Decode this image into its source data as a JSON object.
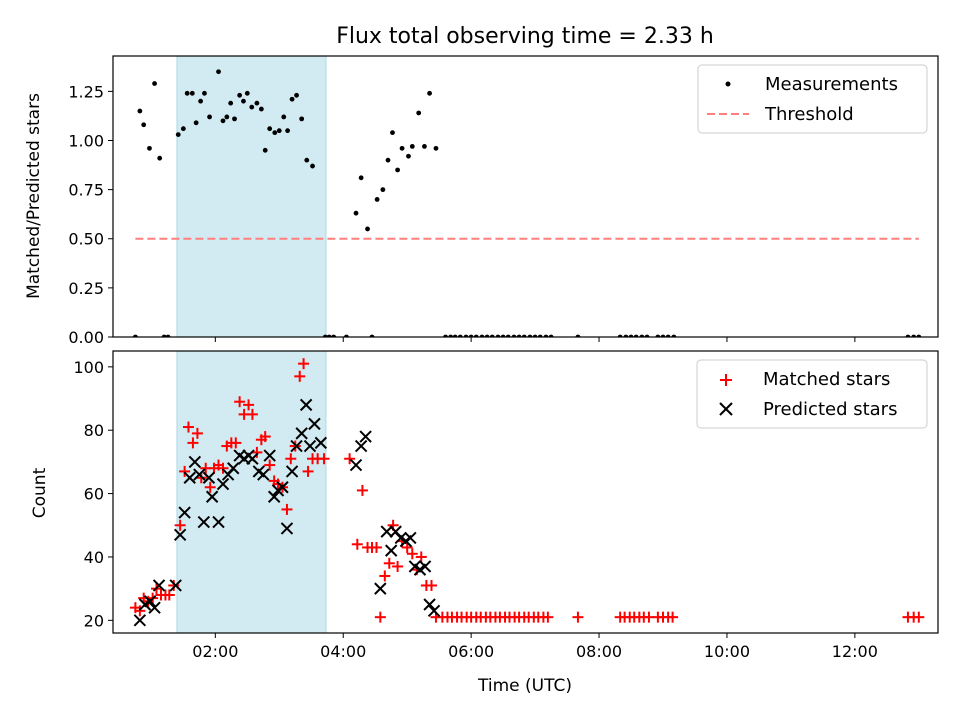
{
  "chart_data": [
    {
      "type": "scatter",
      "title": "Flux total observing time = 2.33 h",
      "xlabel": "",
      "ylabel": "Matched/Predicted stars",
      "xlim": [
        0.4,
        13.3
      ],
      "ylim": [
        0,
        1.43
      ],
      "yticks": [
        0.0,
        0.25,
        0.5,
        0.75,
        1.0,
        1.25
      ],
      "ytick_labels": [
        "0.00",
        "0.25",
        "0.50",
        "0.75",
        "1.00",
        "1.25"
      ],
      "xticks": [
        2,
        4,
        6,
        8,
        10,
        12
      ],
      "shaded_span": [
        1.4,
        3.73
      ],
      "shade_color": "#add8e6",
      "legend": {
        "placement": "top-right",
        "entries": [
          {
            "label": "Measurements",
            "marker": "dot",
            "color": "#000000"
          },
          {
            "label": "Threshold",
            "marker": "dashed-line",
            "color": "#ff7f7f"
          }
        ]
      },
      "threshold": {
        "name": "Threshold",
        "x": [
          0.75,
          13.0
        ],
        "y": 0.5,
        "color": "#ff7f7f"
      },
      "series": [
        {
          "name": "Measurements",
          "color": "#000000",
          "points": [
            [
              0.75,
              0.0
            ],
            [
              0.82,
              1.15
            ],
            [
              0.88,
              1.08
            ],
            [
              0.97,
              0.96
            ],
            [
              1.05,
              1.29
            ],
            [
              1.13,
              0.91
            ],
            [
              1.2,
              0.0
            ],
            [
              1.26,
              0.0
            ],
            [
              1.42,
              1.03
            ],
            [
              1.5,
              1.06
            ],
            [
              1.56,
              1.24
            ],
            [
              1.64,
              1.24
            ],
            [
              1.7,
              1.09
            ],
            [
              1.77,
              1.2
            ],
            [
              1.83,
              1.24
            ],
            [
              1.91,
              1.12
            ],
            [
              2.05,
              1.35
            ],
            [
              2.12,
              1.1
            ],
            [
              2.18,
              1.12
            ],
            [
              2.24,
              1.19
            ],
            [
              2.3,
              1.11
            ],
            [
              2.38,
              1.23
            ],
            [
              2.44,
              1.2
            ],
            [
              2.5,
              1.24
            ],
            [
              2.57,
              1.17
            ],
            [
              2.65,
              1.19
            ],
            [
              2.72,
              1.16
            ],
            [
              2.78,
              0.95
            ],
            [
              2.85,
              1.06
            ],
            [
              2.93,
              1.04
            ],
            [
              3.0,
              1.05
            ],
            [
              3.07,
              1.12
            ],
            [
              3.13,
              1.05
            ],
            [
              3.2,
              1.21
            ],
            [
              3.27,
              1.23
            ],
            [
              3.35,
              1.11
            ],
            [
              3.43,
              0.9
            ],
            [
              3.52,
              0.87
            ],
            [
              3.72,
              0.0
            ],
            [
              3.78,
              0.0
            ],
            [
              3.85,
              0.0
            ],
            [
              4.05,
              0.0
            ],
            [
              4.2,
              0.63
            ],
            [
              4.28,
              0.81
            ],
            [
              4.38,
              0.55
            ],
            [
              4.45,
              0.0
            ],
            [
              4.53,
              0.7
            ],
            [
              4.62,
              0.75
            ],
            [
              4.7,
              0.9
            ],
            [
              4.77,
              1.04
            ],
            [
              4.85,
              0.85
            ],
            [
              4.92,
              0.96
            ],
            [
              5.02,
              0.92
            ],
            [
              5.08,
              0.97
            ],
            [
              5.18,
              1.14
            ],
            [
              5.27,
              0.97
            ],
            [
              5.35,
              1.24
            ],
            [
              5.45,
              0.96
            ],
            [
              5.6,
              0.0
            ],
            [
              5.68,
              0.0
            ],
            [
              5.75,
              0.0
            ],
            [
              5.83,
              0.0
            ],
            [
              5.92,
              0.0
            ],
            [
              6.0,
              0.0
            ],
            [
              6.08,
              0.0
            ],
            [
              6.17,
              0.0
            ],
            [
              6.25,
              0.0
            ],
            [
              6.33,
              0.0
            ],
            [
              6.42,
              0.0
            ],
            [
              6.5,
              0.0
            ],
            [
              6.58,
              0.0
            ],
            [
              6.67,
              0.0
            ],
            [
              6.75,
              0.0
            ],
            [
              6.83,
              0.0
            ],
            [
              6.92,
              0.0
            ],
            [
              7.0,
              0.0
            ],
            [
              7.08,
              0.0
            ],
            [
              7.17,
              0.0
            ],
            [
              7.25,
              0.0
            ],
            [
              7.67,
              0.0
            ],
            [
              8.33,
              0.0
            ],
            [
              8.42,
              0.0
            ],
            [
              8.5,
              0.0
            ],
            [
              8.58,
              0.0
            ],
            [
              8.67,
              0.0
            ],
            [
              8.75,
              0.0
            ],
            [
              8.92,
              0.0
            ],
            [
              9.0,
              0.0
            ],
            [
              9.08,
              0.0
            ],
            [
              9.17,
              0.0
            ],
            [
              12.83,
              0.0
            ],
            [
              12.92,
              0.0
            ],
            [
              13.0,
              0.0
            ]
          ]
        }
      ]
    },
    {
      "type": "scatter",
      "title": "",
      "xlabel": "Time (UTC)",
      "ylabel": "Count",
      "xlim": [
        0.4,
        13.3
      ],
      "ylim": [
        16,
        105
      ],
      "yticks": [
        20,
        40,
        60,
        80,
        100
      ],
      "ytick_labels": [
        "20",
        "40",
        "60",
        "80",
        "100"
      ],
      "xticks": [
        2,
        4,
        6,
        8,
        10,
        12
      ],
      "xtick_labels": [
        "02:00",
        "04:00",
        "06:00",
        "08:00",
        "10:00",
        "12:00"
      ],
      "shaded_span": [
        1.4,
        3.73
      ],
      "shade_color": "#add8e6",
      "legend": {
        "placement": "top-right",
        "entries": [
          {
            "label": "Matched stars",
            "marker": "plus",
            "color": "#ff0000"
          },
          {
            "label": "Predicted stars",
            "marker": "x",
            "color": "#000000"
          }
        ]
      },
      "series": [
        {
          "name": "Matched stars",
          "marker": "plus",
          "color": "#ff0000",
          "points": [
            [
              0.75,
              24
            ],
            [
              0.82,
              23
            ],
            [
              0.88,
              27
            ],
            [
              0.95,
              26
            ],
            [
              1.02,
              27
            ],
            [
              1.08,
              30
            ],
            [
              1.15,
              28
            ],
            [
              1.22,
              28
            ],
            [
              1.28,
              28
            ],
            [
              1.35,
              31
            ],
            [
              1.45,
              50
            ],
            [
              1.52,
              67
            ],
            [
              1.58,
              81
            ],
            [
              1.65,
              76
            ],
            [
              1.72,
              79
            ],
            [
              1.78,
              65
            ],
            [
              1.85,
              68
            ],
            [
              1.92,
              62
            ],
            [
              1.98,
              68
            ],
            [
              2.05,
              69
            ],
            [
              2.12,
              68
            ],
            [
              2.18,
              75
            ],
            [
              2.25,
              76
            ],
            [
              2.32,
              76
            ],
            [
              2.38,
              89
            ],
            [
              2.45,
              85
            ],
            [
              2.52,
              88
            ],
            [
              2.58,
              85
            ],
            [
              2.65,
              73
            ],
            [
              2.72,
              77
            ],
            [
              2.78,
              78
            ],
            [
              2.85,
              69
            ],
            [
              2.92,
              64
            ],
            [
              2.98,
              63
            ],
            [
              3.05,
              62
            ],
            [
              3.12,
              55
            ],
            [
              3.18,
              71
            ],
            [
              3.25,
              75
            ],
            [
              3.32,
              97
            ],
            [
              3.38,
              101
            ],
            [
              3.45,
              67
            ],
            [
              3.52,
              71
            ],
            [
              3.6,
              71
            ],
            [
              3.7,
              71
            ],
            [
              4.1,
              71
            ],
            [
              4.22,
              44
            ],
            [
              4.3,
              61
            ],
            [
              4.38,
              43
            ],
            [
              4.45,
              43
            ],
            [
              4.52,
              43
            ],
            [
              4.58,
              21
            ],
            [
              4.65,
              34
            ],
            [
              4.72,
              38
            ],
            [
              4.78,
              50
            ],
            [
              4.85,
              37
            ],
            [
              4.92,
              45
            ],
            [
              5.0,
              43
            ],
            [
              5.08,
              41
            ],
            [
              5.15,
              36
            ],
            [
              5.22,
              40
            ],
            [
              5.3,
              31
            ],
            [
              5.38,
              31
            ],
            [
              5.45,
              21
            ],
            [
              5.55,
              21
            ],
            [
              5.63,
              21
            ],
            [
              5.7,
              21
            ],
            [
              5.78,
              21
            ],
            [
              5.85,
              21
            ],
            [
              5.93,
              21
            ],
            [
              6.0,
              21
            ],
            [
              6.08,
              21
            ],
            [
              6.15,
              21
            ],
            [
              6.23,
              21
            ],
            [
              6.3,
              21
            ],
            [
              6.38,
              21
            ],
            [
              6.45,
              21
            ],
            [
              6.53,
              21
            ],
            [
              6.6,
              21
            ],
            [
              6.68,
              21
            ],
            [
              6.75,
              21
            ],
            [
              6.83,
              21
            ],
            [
              6.9,
              21
            ],
            [
              6.98,
              21
            ],
            [
              7.05,
              21
            ],
            [
              7.13,
              21
            ],
            [
              7.2,
              21
            ],
            [
              7.67,
              21
            ],
            [
              8.33,
              21
            ],
            [
              8.4,
              21
            ],
            [
              8.48,
              21
            ],
            [
              8.55,
              21
            ],
            [
              8.63,
              21
            ],
            [
              8.7,
              21
            ],
            [
              8.78,
              21
            ],
            [
              8.92,
              21
            ],
            [
              9.0,
              21
            ],
            [
              9.08,
              21
            ],
            [
              9.15,
              21
            ],
            [
              12.83,
              21
            ],
            [
              12.92,
              21
            ],
            [
              13.0,
              21
            ]
          ]
        },
        {
          "name": "Predicted stars",
          "marker": "x",
          "color": "#000000",
          "points": [
            [
              0.82,
              20
            ],
            [
              0.9,
              25
            ],
            [
              0.98,
              26
            ],
            [
              1.05,
              24
            ],
            [
              1.12,
              31
            ],
            [
              1.38,
              31
            ],
            [
              1.45,
              47
            ],
            [
              1.52,
              54
            ],
            [
              1.6,
              65
            ],
            [
              1.68,
              70
            ],
            [
              1.75,
              66
            ],
            [
              1.82,
              51
            ],
            [
              1.9,
              65
            ],
            [
              1.95,
              59
            ],
            [
              2.05,
              51
            ],
            [
              2.12,
              63
            ],
            [
              2.2,
              66
            ],
            [
              2.28,
              68
            ],
            [
              2.38,
              72
            ],
            [
              2.45,
              71
            ],
            [
              2.52,
              72
            ],
            [
              2.58,
              71
            ],
            [
              2.68,
              67
            ],
            [
              2.75,
              66
            ],
            [
              2.85,
              72
            ],
            [
              2.92,
              59
            ],
            [
              2.98,
              61
            ],
            [
              3.05,
              62
            ],
            [
              3.12,
              49
            ],
            [
              3.2,
              67
            ],
            [
              3.27,
              75
            ],
            [
              3.35,
              79
            ],
            [
              3.42,
              88
            ],
            [
              3.48,
              75
            ],
            [
              3.55,
              82
            ],
            [
              3.65,
              76
            ],
            [
              4.2,
              69
            ],
            [
              4.28,
              75
            ],
            [
              4.35,
              78
            ],
            [
              4.58,
              30
            ],
            [
              4.68,
              48
            ],
            [
              4.75,
              42
            ],
            [
              4.82,
              48
            ],
            [
              4.9,
              46
            ],
            [
              4.98,
              45
            ],
            [
              5.05,
              46
            ],
            [
              5.12,
              37
            ],
            [
              5.2,
              36
            ],
            [
              5.28,
              37
            ],
            [
              5.35,
              25
            ],
            [
              5.42,
              23
            ]
          ]
        }
      ]
    }
  ]
}
